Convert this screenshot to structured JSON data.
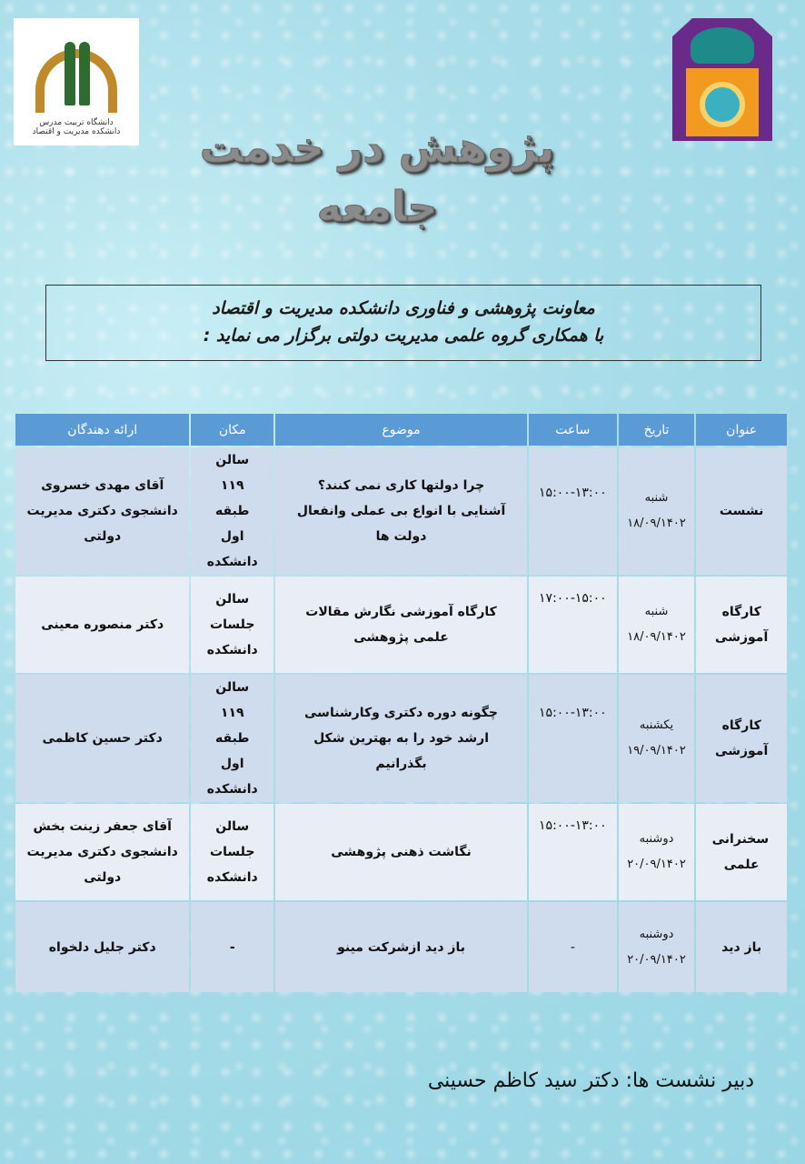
{
  "header": {
    "title_line1": "پژوهش در خدمت",
    "title_line2": "جامعه",
    "left_logo_text": "دانشگاه تربیت مدرس",
    "left_logo_subtext": "دانشکده مدیریت و اقتصاد"
  },
  "intro": {
    "line1": "معاونت پژوهشی و فناوری دانشکده مدیریت و اقتصاد",
    "line2": "با همکاری گروه علمی مدیریت دولتی برگزار می نماید :"
  },
  "table": {
    "headers": [
      "عنوان",
      "تاریخ",
      "ساعت",
      "موضوع",
      "مکان",
      "ارائه دهندگان"
    ],
    "rows": [
      {
        "title": "نشست",
        "day": "شنبه",
        "date": "۱۸/۰۹/۱۴۰۲",
        "time": "۱۵:۰۰-۱۳:۰۰",
        "topic1": "چرا دولتها کاری نمی کنند؟",
        "topic2": "آشنایی با انواع بی عملی وانفعال دولت ها",
        "location": "سالن ۱۱۹ طبقه اول دانشکده",
        "presenter": "آقای مهدی خسروی دانشجوی دکتری مدیریت دولتی"
      },
      {
        "title": "کارگاه آموزشی",
        "day": "شنبه",
        "date": "۱۸/۰۹/۱۴۰۲",
        "time": "۱۷:۰۰-۱۵:۰۰",
        "topic1": "کارگاه آموزشی نگارش مقالات علمی پژوهشی",
        "topic2": "",
        "location": "سالن جلسات دانشکده",
        "presenter": "دکتر منصوره معینی"
      },
      {
        "title": "کارگاه آموزشی",
        "day": "یکشنبه",
        "date": "۱۹/۰۹/۱۴۰۲",
        "time": "۱۵:۰۰-۱۳:۰۰",
        "topic1": "چگونه دوره دکتری وکارشناسی ارشد خود را به بهترین شکل بگذرانیم",
        "topic2": "",
        "location": "سالن ۱۱۹ طبقه اول دانشکده",
        "presenter": "دکتر حسین کاظمی"
      },
      {
        "title": "سخنرانی علمی",
        "day": "دوشنبه",
        "date": "۲۰/۰۹/۱۴۰۲",
        "time": "۱۵:۰۰-۱۳:۰۰",
        "topic1": "نگاشت ذهنی پژوهشی",
        "topic2": "",
        "location": "سالن جلسات دانشکده",
        "presenter": "آقای جعفر زینت بخش دانشجوی دکتری مدیریت دولتی"
      },
      {
        "title": "باز دید",
        "day": "دوشنبه",
        "date": "۲۰/۰۹/۱۴۰۲",
        "time": "-",
        "topic1": "باز دید ازشرکت مینو",
        "topic2": "",
        "location": "-",
        "presenter": "دکتر جلیل دلخواه"
      }
    ]
  },
  "footer": {
    "secretary": "دبیر نشست ها: دکتر سید کاظم حسینی"
  }
}
